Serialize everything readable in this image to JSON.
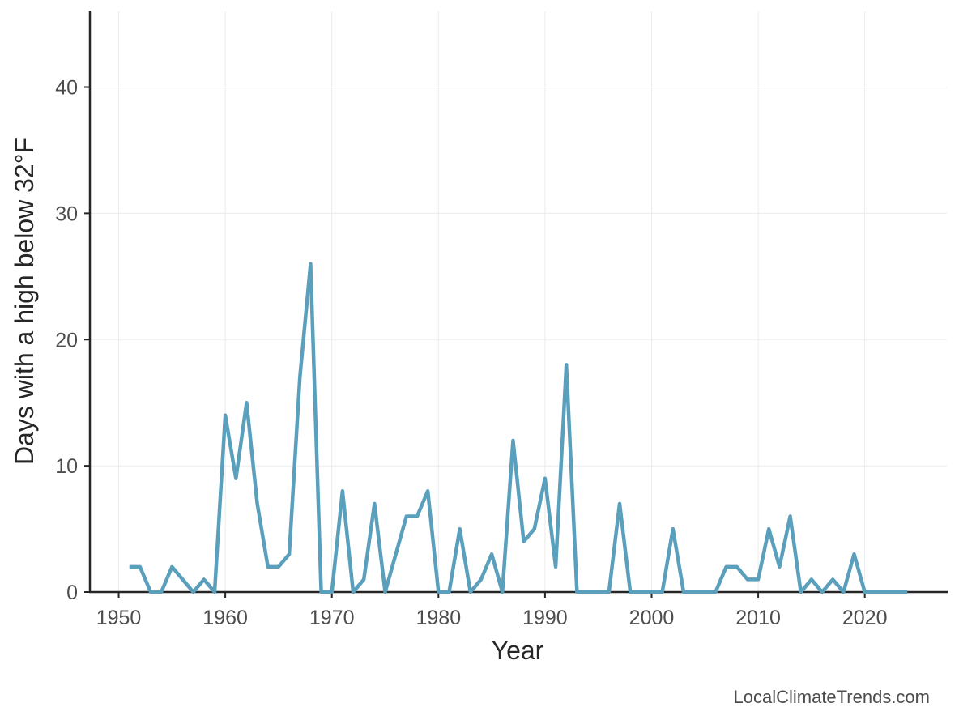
{
  "chart_data": {
    "type": "line",
    "xlabel": "Year",
    "ylabel": "Days with a high below 32°F",
    "xlim": [
      1947.3,
      1927.7
    ],
    "ylim": [
      0,
      46
    ],
    "grid": true,
    "color": "#5a9fbc",
    "x_ticks": [
      1950,
      1960,
      1970,
      1980,
      1990,
      2000,
      2010,
      2020
    ],
    "y_ticks": [
      0,
      10,
      20,
      30,
      40
    ],
    "series": [
      {
        "x": [
          1951,
          1952,
          1953,
          1954,
          1955,
          1956,
          1957,
          1958,
          1959,
          1960,
          1961,
          1962,
          1963,
          1964,
          1965,
          1966,
          1967,
          1968,
          1969,
          1970,
          1971,
          1972,
          1973,
          1974,
          1975,
          1976,
          1977,
          1978,
          1979,
          1980,
          1981,
          1982,
          1983,
          1984,
          1985,
          1986,
          1987,
          1988,
          1989,
          1990,
          1991,
          1992,
          1993,
          1994,
          1995,
          1996,
          1997,
          1998,
          1999,
          2000,
          2001,
          2002,
          2003,
          2004,
          2005,
          2006,
          2007,
          2008,
          2009,
          2010,
          2011,
          2012,
          2013,
          2014,
          2015,
          2016,
          2017,
          2018,
          2019,
          2020,
          2021,
          2022,
          2023,
          2024
        ],
        "y": [
          2,
          2,
          0,
          0,
          2,
          1,
          0,
          1,
          0,
          14,
          9,
          15,
          7,
          2,
          2,
          3,
          17,
          26,
          0,
          0,
          8,
          0,
          1,
          7,
          0,
          3,
          6,
          6,
          8,
          0,
          0,
          5,
          0,
          1,
          3,
          0,
          12,
          4,
          5,
          9,
          2,
          18,
          0,
          0,
          0,
          0,
          7,
          0,
          0,
          0,
          0,
          5,
          0,
          0,
          0,
          0,
          2,
          2,
          1,
          1,
          5,
          2,
          6,
          0,
          1,
          0,
          1,
          0,
          3,
          0,
          0,
          0,
          0,
          0
        ]
      }
    ]
  },
  "watermark": "LocalClimateTrends.com"
}
